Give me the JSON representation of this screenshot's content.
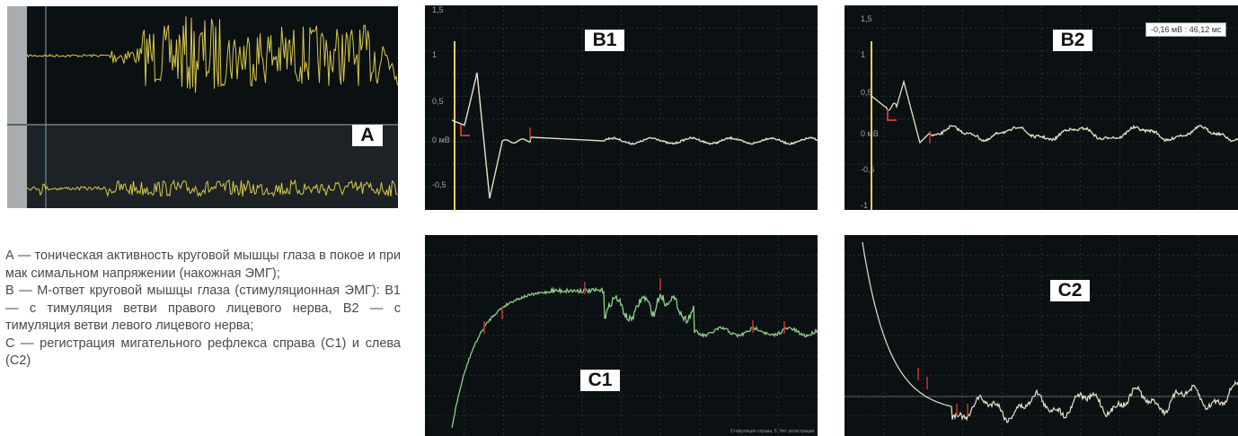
{
  "panels": {
    "A": {
      "label": "A",
      "trace_color": "#d8c84a"
    },
    "B1": {
      "label": "B1",
      "trace_color": "#e8e2c8",
      "y_ticks": [
        "1,5",
        "1",
        "0,5",
        "0 мВ",
        "-0,5"
      ]
    },
    "B2": {
      "label": "B2",
      "trace_color": "#e8e2c8",
      "y_ticks": [
        "1,5",
        "1",
        "0,5",
        "0 мВ",
        "-0,5",
        "-1"
      ],
      "readout": "-0,16 мВ : 46,12 мс"
    },
    "C1": {
      "label": "C1",
      "trace_color": "#8fd08a",
      "footnote": "Стимуляция справа, 5. Нет регистрации"
    },
    "C2": {
      "label": "C2",
      "trace_color": "#e8e2c8"
    }
  },
  "marker_color": "#c8342a",
  "cursor_color": "#e0d060",
  "caption": {
    "line_a": "А — тоническая активность круговой мышцы глаза в покое и при мак симальном напряжении (накожная ЭМГ);",
    "line_b": "В — М-ответ круговой мышцы глаза (стимуляционная ЭМГ): В1 — с тимуляция ветви правого лицевого нерва, В2 — с тимуляция ветви левого лицевого нерва;",
    "line_c": "С — регистрация мигательного рефлекса справа (С1) и слева (С2)"
  }
}
